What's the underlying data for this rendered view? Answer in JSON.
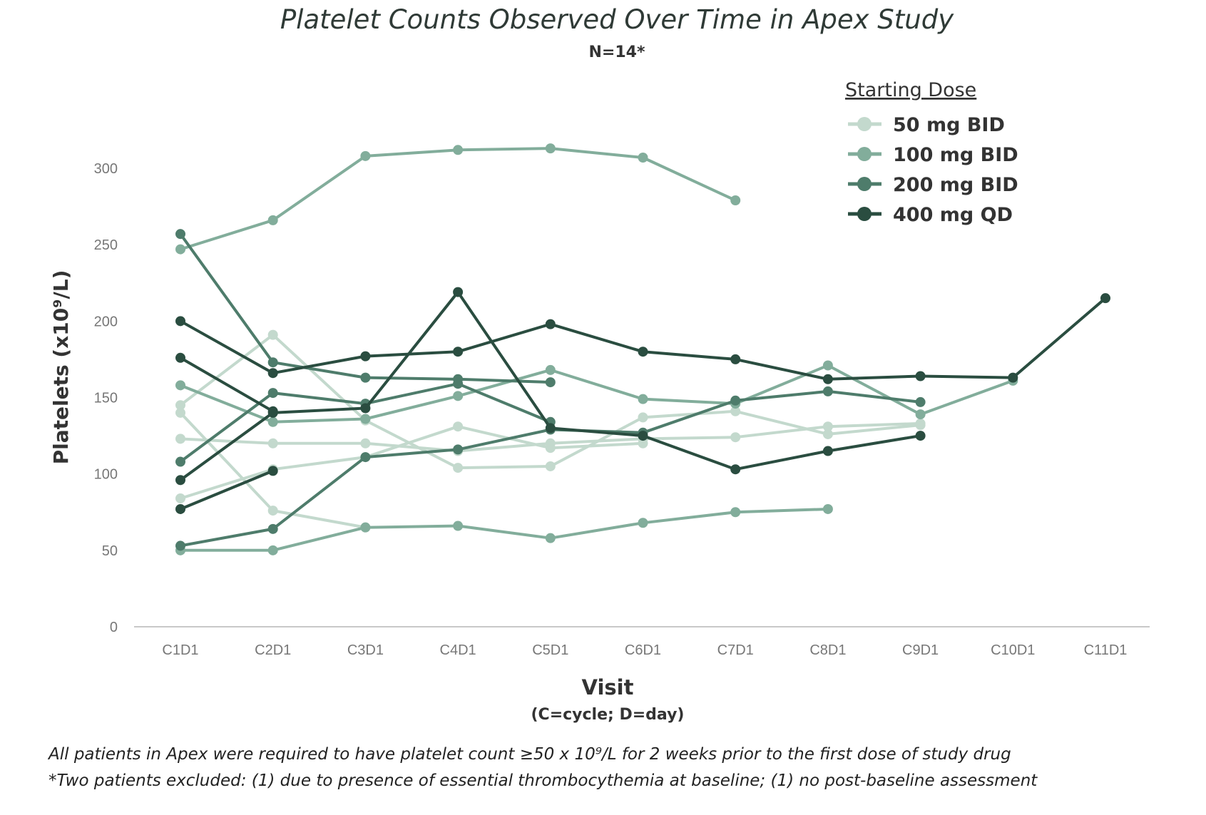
{
  "chart_data": {
    "type": "line",
    "title": "Platelet Counts Observed Over Time in Apex Study",
    "subtitle": "N=14*",
    "xlabel": "Visit",
    "xlabel_sub": "(C=cycle; D=day)",
    "ylabel": "Platelets (x10⁹/L)",
    "ylim": [
      0,
      300
    ],
    "yticks": [
      0,
      50,
      100,
      150,
      200,
      250,
      300
    ],
    "grid": false,
    "legend_placement": "top-right",
    "legend_title": "Starting Dose",
    "categories": [
      "C1D1",
      "C2D1",
      "C3D1",
      "C4D1",
      "C5D1",
      "C6D1",
      "C7D1",
      "C8D1",
      "C9D1",
      "C10D1",
      "C11D1"
    ],
    "groups": [
      {
        "name": "50 mg BID",
        "color": "#c3d9cd"
      },
      {
        "name": "100 mg BID",
        "color": "#82ad9b"
      },
      {
        "name": "200 mg BID",
        "color": "#4e7c6b"
      },
      {
        "name": "400 mg QD",
        "color": "#2a4d40"
      }
    ],
    "series": [
      {
        "group": "50 mg BID",
        "values": [
          145,
          191,
          135,
          104,
          105,
          137,
          141,
          126,
          132,
          null,
          null
        ]
      },
      {
        "group": "50 mg BID",
        "values": [
          140,
          76,
          65,
          null,
          null,
          null,
          null,
          null,
          null,
          null,
          null
        ]
      },
      {
        "group": "50 mg BID",
        "values": [
          123,
          120,
          120,
          115,
          120,
          123,
          124,
          131,
          133,
          null,
          null
        ]
      },
      {
        "group": "50 mg BID",
        "values": [
          84,
          103,
          111,
          131,
          117,
          120,
          null,
          null,
          null,
          null,
          null
        ]
      },
      {
        "group": "100 mg BID",
        "values": [
          247,
          266,
          308,
          312,
          313,
          307,
          279,
          null,
          null,
          null,
          null
        ]
      },
      {
        "group": "100 mg BID",
        "values": [
          158,
          134,
          136,
          151,
          168,
          149,
          146,
          171,
          139,
          161,
          null
        ]
      },
      {
        "group": "100 mg BID",
        "values": [
          50,
          50,
          65,
          66,
          58,
          68,
          75,
          77,
          null,
          null,
          null
        ]
      },
      {
        "group": "200 mg BID",
        "values": [
          257,
          173,
          163,
          162,
          160,
          null,
          null,
          null,
          null,
          null,
          null
        ]
      },
      {
        "group": "200 mg BID",
        "values": [
          108,
          153,
          146,
          159,
          134,
          null,
          null,
          null,
          null,
          null,
          null
        ]
      },
      {
        "group": "200 mg BID",
        "values": [
          53,
          64,
          111,
          116,
          129,
          127,
          148,
          154,
          147,
          null,
          null
        ]
      },
      {
        "group": "400 mg QD",
        "values": [
          200,
          166,
          177,
          180,
          198,
          180,
          175,
          162,
          164,
          163,
          215
        ]
      },
      {
        "group": "400 mg QD",
        "values": [
          176,
          141,
          null,
          null,
          null,
          null,
          null,
          null,
          null,
          null,
          null
        ]
      },
      {
        "group": "400 mg QD",
        "values": [
          96,
          140,
          143,
          219,
          130,
          125,
          103,
          115,
          125,
          null,
          null
        ]
      },
      {
        "group": "400 mg QD",
        "values": [
          77,
          102,
          null,
          null,
          null,
          null,
          null,
          null,
          null,
          null,
          null
        ]
      }
    ]
  },
  "footnotes": [
    "All patients in Apex were required to have platelet count ≥50 x 10⁹/L for 2 weeks prior to the first dose of study drug",
    "*Two patients excluded: (1) due to presence of essential thrombocythemia at baseline; (1) no post-baseline assessment"
  ]
}
